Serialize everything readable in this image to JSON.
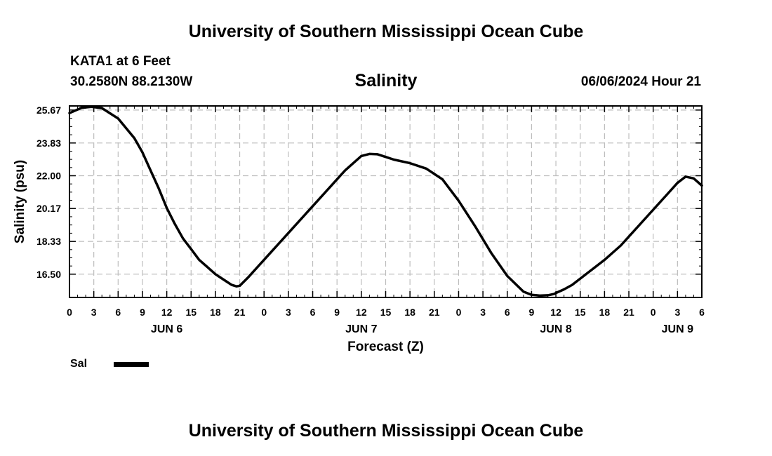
{
  "header": {
    "title": "University of Southern Mississippi Ocean Cube",
    "station": "KATA1 at 6 Feet",
    "coords": "30.2580N  88.2130W",
    "subtitle": "Salinity",
    "datetime": "06/06/2024 Hour 21"
  },
  "footer": {
    "title": "University of Southern Mississippi Ocean Cube"
  },
  "legend": {
    "label": "Sal",
    "color": "#000000"
  },
  "chart_data": {
    "type": "line",
    "title": "Salinity",
    "xlabel": "Forecast (Z)",
    "ylabel": "Salinity (psu)",
    "xlim": [
      0,
      78
    ],
    "ylim": [
      15.2,
      25.9
    ],
    "grid": true,
    "yticks": [
      16.5,
      18.33,
      20.17,
      22.0,
      23.83,
      25.67
    ],
    "ytick_labels": [
      "16.50",
      "18.33",
      "20.17",
      "22.00",
      "23.83",
      "25.67"
    ],
    "xticks": [
      0,
      3,
      6,
      9,
      12,
      15,
      18,
      21,
      24,
      27,
      30,
      33,
      36,
      39,
      42,
      45,
      48,
      51,
      54,
      57,
      60,
      63,
      66,
      69,
      72,
      75,
      78
    ],
    "xtick_labels": [
      "0",
      "3",
      "6",
      "9",
      "12",
      "15",
      "18",
      "21",
      "0",
      "3",
      "6",
      "9",
      "12",
      "15",
      "18",
      "21",
      "0",
      "3",
      "6",
      "9",
      "12",
      "15",
      "18",
      "21",
      "0",
      "3",
      "6"
    ],
    "day_labels": [
      {
        "x": 12,
        "label": "JUN 6"
      },
      {
        "x": 36,
        "label": "JUN 7"
      },
      {
        "x": 60,
        "label": "JUN 8"
      },
      {
        "x": 75,
        "label": "JUN 9"
      }
    ],
    "series": [
      {
        "name": "Sal",
        "x": [
          0,
          1.5,
          2.7,
          4,
          6,
          8,
          9,
          10,
          11,
          12,
          13,
          14,
          15,
          16,
          17,
          18,
          19,
          20,
          20.6,
          21,
          22,
          24,
          26,
          28,
          30,
          32,
          34,
          36,
          37,
          38,
          39,
          40,
          42,
          44,
          46,
          48,
          50,
          52,
          54,
          56,
          57,
          58,
          59,
          59.8,
          60,
          61,
          62,
          64,
          66,
          68,
          70,
          72,
          74,
          75,
          76,
          77,
          78
        ],
        "y": [
          25.5,
          25.8,
          25.85,
          25.78,
          25.2,
          24.1,
          23.3,
          22.3,
          21.3,
          20.2,
          19.3,
          18.5,
          17.9,
          17.3,
          16.9,
          16.5,
          16.2,
          15.9,
          15.82,
          15.85,
          16.3,
          17.3,
          18.3,
          19.3,
          20.3,
          21.3,
          22.3,
          23.1,
          23.22,
          23.2,
          23.05,
          22.9,
          22.7,
          22.4,
          21.8,
          20.6,
          19.2,
          17.7,
          16.4,
          15.52,
          15.35,
          15.3,
          15.32,
          15.4,
          15.45,
          15.65,
          15.9,
          16.6,
          17.3,
          18.1,
          19.1,
          20.1,
          21.1,
          21.6,
          21.95,
          21.85,
          21.45
        ]
      }
    ]
  }
}
